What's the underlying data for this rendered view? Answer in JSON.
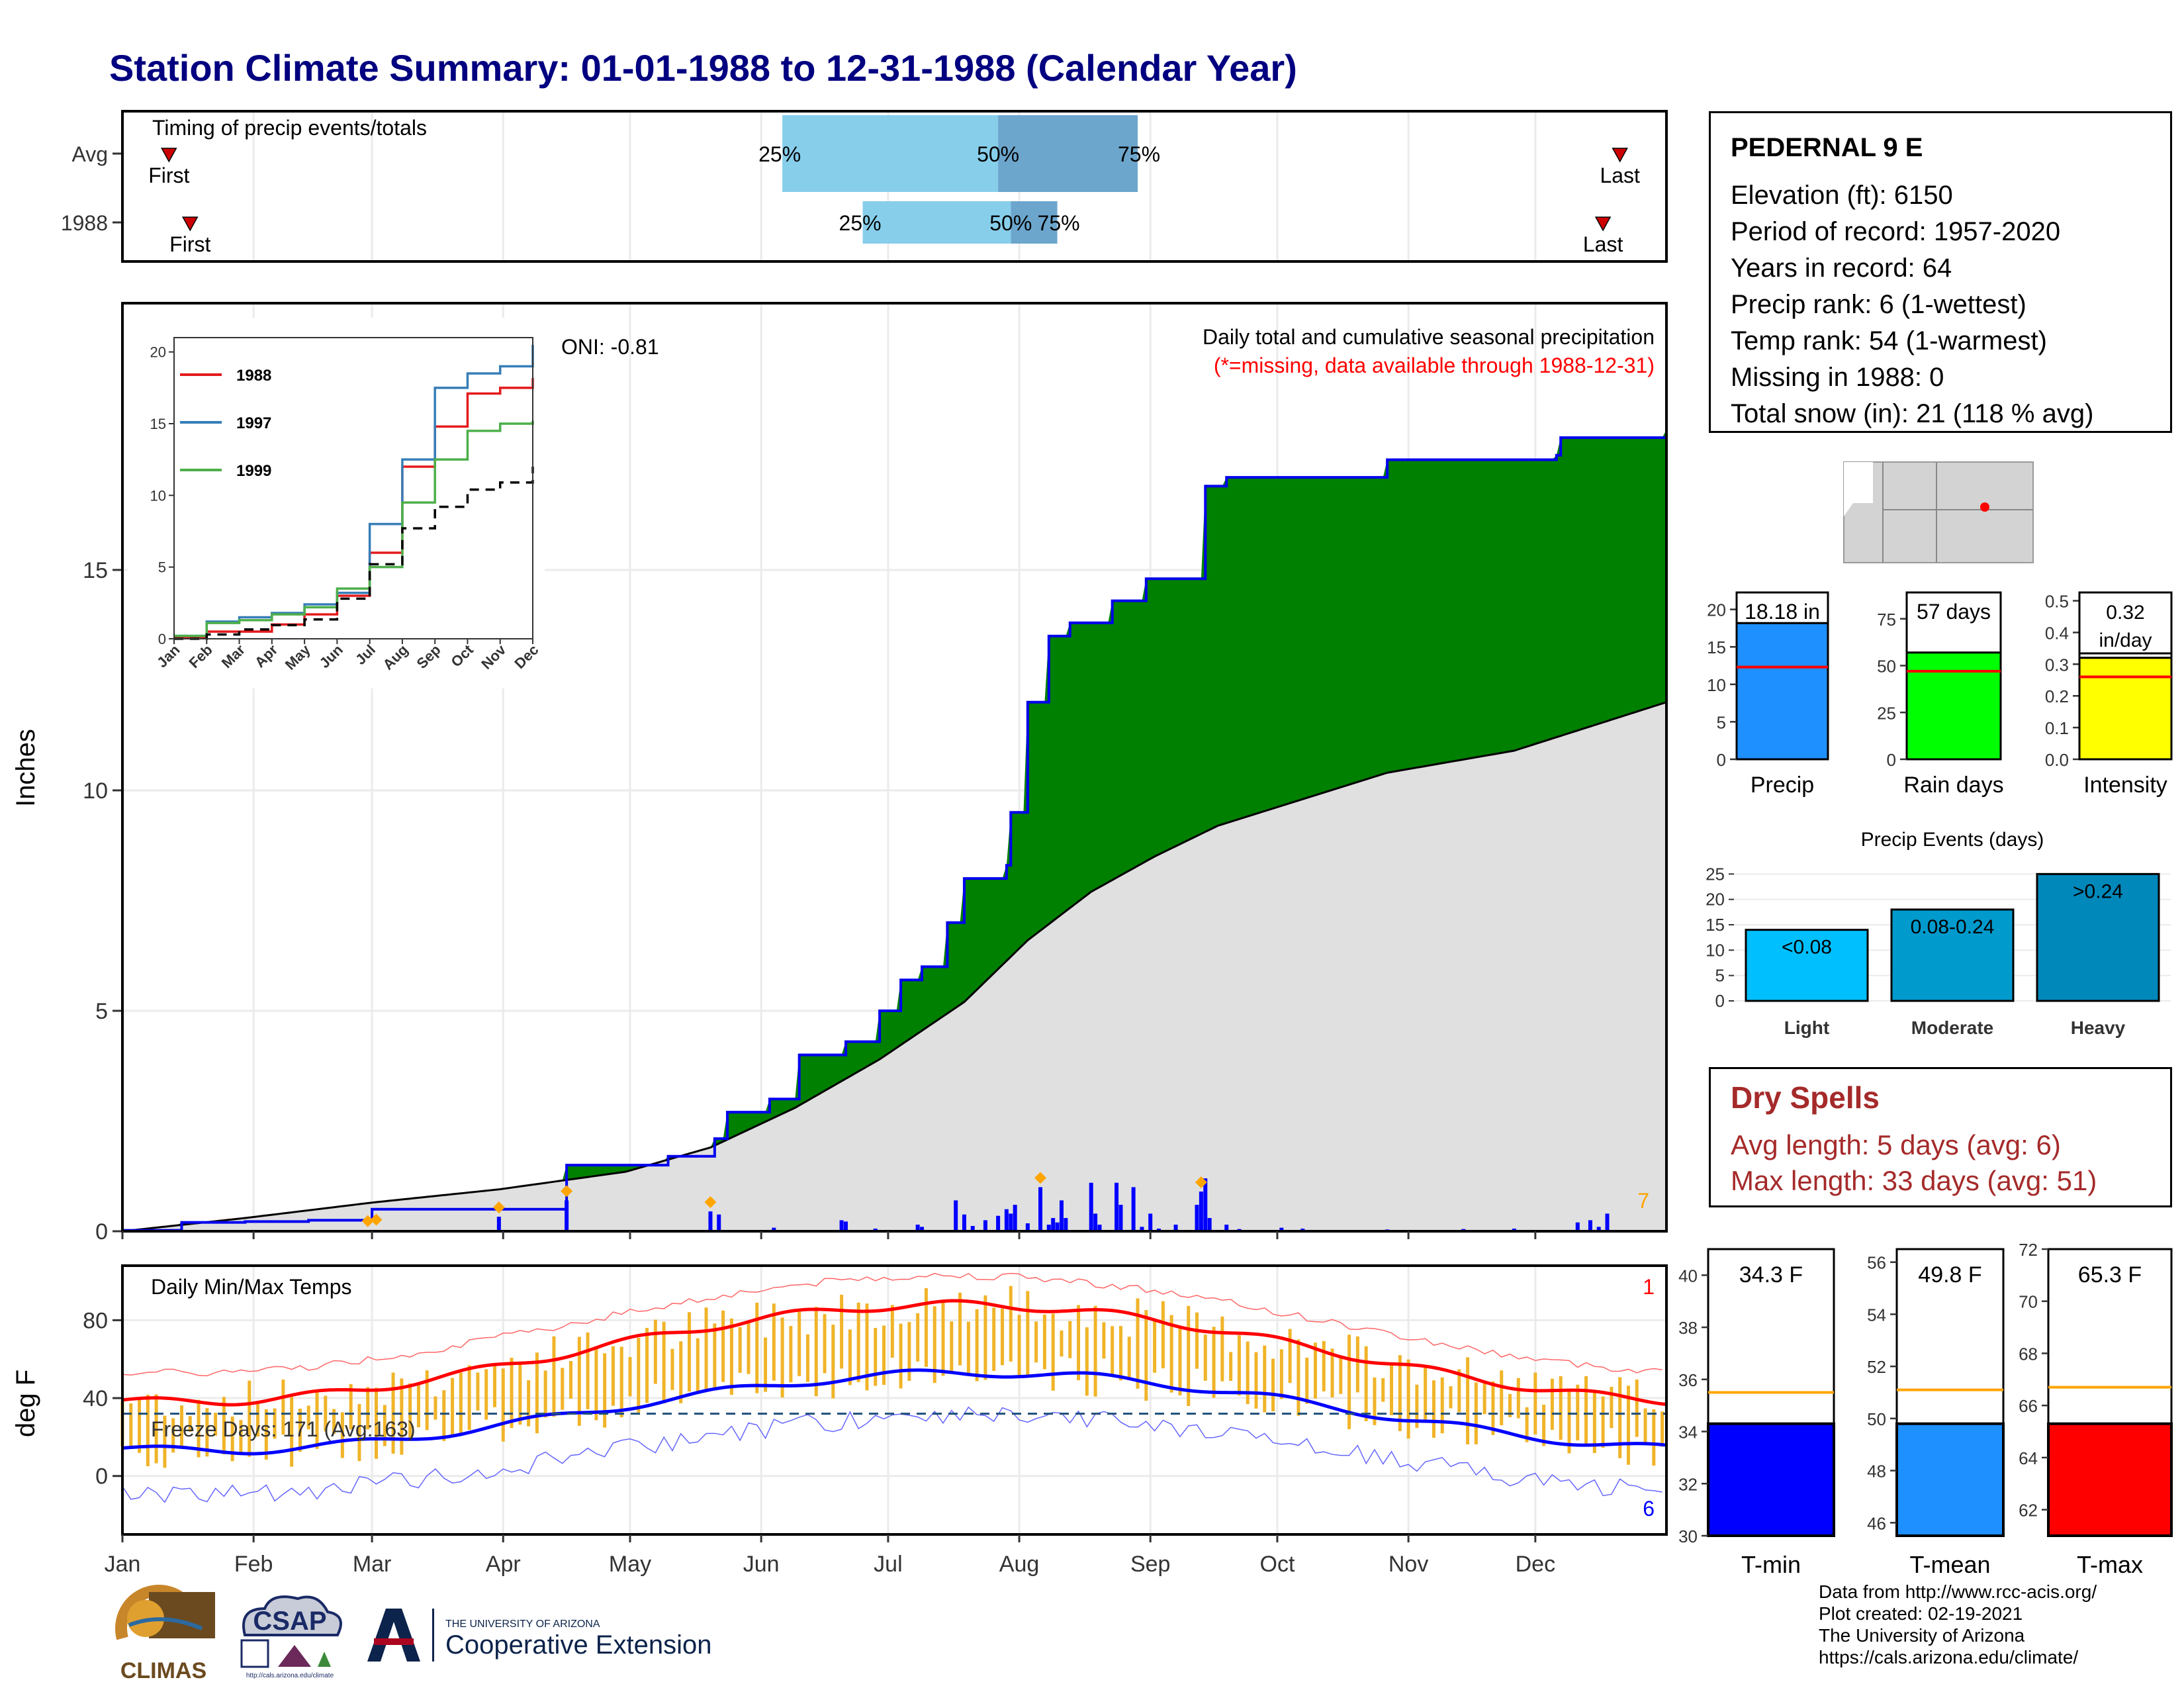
{
  "title": "Station Climate Summary: 01-01-1988 to 12-31-1988 (Calendar Year)",
  "station": {
    "name": "PEDERNAL 9 E",
    "lines": [
      "Elevation (ft): 6150",
      "Period of record: 1957-2020",
      "Years in record: 64",
      "Precip rank: 6 (1-wettest)",
      "Temp rank: 54 (1-warmest)",
      "Missing in 1988: 0",
      "Total snow (in): 21 (118 % avg)"
    ]
  },
  "dry_spells": {
    "title": "Dry Spells",
    "avg_length": "Avg length: 5 days (avg: 6)",
    "max_length": "Max length: 33 days (avg: 51)"
  },
  "footer": {
    "line1": "Data from http://www.rcc-acis.org/",
    "line2": "Plot created: 02-19-2021",
    "line3": "The University of Arizona",
    "line4": "https://cals.arizona.edu/climate/"
  },
  "logos": {
    "climas": "CLIMAS",
    "csap": "CSAP",
    "csap_url": "http://cals.arizona.edu/climate",
    "ua_small": "THE UNIVERSITY OF ARIZONA",
    "ua_big": "Cooperative Extension"
  },
  "colors": {
    "title": "#000080",
    "green_fill": "#008000",
    "brown_fill": "#7a4f10",
    "avg_fill": "#e0e0e0",
    "precip_bar": "#0000ff",
    "temp_bar": "#f0b429",
    "max_line": "#ff0000",
    "min_line": "#0000ff",
    "dry_spell": "#a52a2a"
  },
  "chart_data": [
    {
      "id": "timing",
      "type": "bar",
      "title": "Timing of precip events/totals",
      "rows": [
        {
          "label": "Avg",
          "first": "First",
          "last": "Last",
          "p25_label": "25%",
          "p50_label": "50%",
          "p75_label": "75%",
          "first_day": 12,
          "p25_day": 157,
          "p50_day": 208,
          "p75_day": 241,
          "last_day": 355
        },
        {
          "label": "1988",
          "first": "First",
          "last": "Last",
          "p25_label": "25%",
          "p50_label": "50%",
          "p75_label": "75%",
          "first_day": 17,
          "p25_day": 176,
          "p50_day": 211,
          "p75_day": 222,
          "last_day": 351
        }
      ]
    },
    {
      "id": "precip",
      "type": "area",
      "title": "Daily total and cumulative seasonal precipitation",
      "subtitle": "(*=missing, data available through 1988-12-31)",
      "oni": "ONI: -0.81",
      "ylabel": "Inches",
      "ylim": [
        0,
        20
      ],
      "yticks": [
        0,
        5,
        10,
        15
      ],
      "corner_count": "7",
      "cumulative_1988": [
        [
          1,
          0.02
        ],
        [
          15,
          0.2
        ],
        [
          30,
          0.22
        ],
        [
          45,
          0.25
        ],
        [
          60,
          0.5
        ],
        [
          90,
          0.5
        ],
        [
          106,
          0.6
        ],
        [
          106,
          1.5
        ],
        [
          130,
          1.7
        ],
        [
          140,
          1.7
        ],
        [
          141,
          2.1
        ],
        [
          144,
          2.7
        ],
        [
          153,
          2.7
        ],
        [
          154,
          3.0
        ],
        [
          160,
          3.0
        ],
        [
          161,
          4.0
        ],
        [
          172,
          4.3
        ],
        [
          180,
          5.0
        ],
        [
          185,
          5.7
        ],
        [
          190,
          6.0
        ],
        [
          196,
          7.0
        ],
        [
          200,
          8.0
        ],
        [
          210,
          8.3
        ],
        [
          211,
          9.5
        ],
        [
          215,
          12.0
        ],
        [
          220,
          13.5
        ],
        [
          225,
          13.8
        ],
        [
          235,
          14.3
        ],
        [
          243,
          14.8
        ],
        [
          256,
          14.8
        ],
        [
          257,
          16.9
        ],
        [
          262,
          17.1
        ],
        [
          290,
          17.1
        ],
        [
          300,
          17.5
        ],
        [
          340,
          17.6
        ],
        [
          341,
          18.0
        ],
        [
          366,
          18.18
        ]
      ],
      "cumulative_avg": [
        [
          1,
          0.0
        ],
        [
          30,
          0.3
        ],
        [
          60,
          0.65
        ],
        [
          90,
          0.95
        ],
        [
          120,
          1.35
        ],
        [
          140,
          1.9
        ],
        [
          160,
          2.8
        ],
        [
          180,
          3.9
        ],
        [
          200,
          5.2
        ],
        [
          215,
          6.6
        ],
        [
          230,
          7.7
        ],
        [
          245,
          8.5
        ],
        [
          260,
          9.2
        ],
        [
          280,
          9.8
        ],
        [
          300,
          10.4
        ],
        [
          330,
          10.9
        ],
        [
          366,
          12.0
        ]
      ],
      "daily": [
        [
          59,
          0.02
        ],
        [
          60,
          0.02
        ],
        [
          90,
          0.33
        ],
        [
          106,
          0.7
        ],
        [
          140,
          0.45
        ],
        [
          142,
          0.38
        ],
        [
          155,
          0.08
        ],
        [
          171,
          0.25
        ],
        [
          172,
          0.22
        ],
        [
          179,
          0.06
        ],
        [
          189,
          0.15
        ],
        [
          190,
          0.1
        ],
        [
          198,
          0.7
        ],
        [
          200,
          0.38
        ],
        [
          202,
          0.12
        ],
        [
          205,
          0.25
        ],
        [
          208,
          0.35
        ],
        [
          210,
          0.5
        ],
        [
          211,
          0.4
        ],
        [
          212,
          0.6
        ],
        [
          215,
          0.18
        ],
        [
          218,
          1.0
        ],
        [
          220,
          0.15
        ],
        [
          221,
          0.3
        ],
        [
          222,
          0.2
        ],
        [
          223,
          0.7
        ],
        [
          224,
          0.3
        ],
        [
          230,
          1.1
        ],
        [
          231,
          0.4
        ],
        [
          232,
          0.15
        ],
        [
          236,
          1.1
        ],
        [
          237,
          0.6
        ],
        [
          240,
          1.0
        ],
        [
          242,
          0.1
        ],
        [
          244,
          0.4
        ],
        [
          246,
          0.06
        ],
        [
          250,
          0.15
        ],
        [
          255,
          0.6
        ],
        [
          256,
          0.9
        ],
        [
          257,
          1.2
        ],
        [
          258,
          0.3
        ],
        [
          262,
          0.15
        ],
        [
          265,
          0.05
        ],
        [
          275,
          0.08
        ],
        [
          280,
          0.06
        ],
        [
          300,
          0.04
        ],
        [
          318,
          0.05
        ],
        [
          330,
          0.06
        ],
        [
          345,
          0.2
        ],
        [
          348,
          0.25
        ],
        [
          350,
          0.1
        ],
        [
          352,
          0.4
        ]
      ],
      "snow_markers": [
        59,
        61,
        90,
        106,
        140,
        218,
        256
      ],
      "inset": {
        "type": "line",
        "xticks": [
          "Jan",
          "Feb",
          "Mar",
          "Apr",
          "May",
          "Jun",
          "Jul",
          "Aug",
          "Sep",
          "Oct",
          "Nov",
          "Dec"
        ],
        "yticks": [
          0,
          5,
          10,
          15,
          20
        ],
        "series": [
          {
            "name": "1988",
            "color": "#e41a1c",
            "values": [
              0.05,
              0.5,
              0.5,
              1.0,
              1.7,
              3.0,
              6.0,
              12.0,
              14.8,
              17.1,
              17.5,
              18.18
            ]
          },
          {
            "name": "1997",
            "color": "#377eb8",
            "values": [
              0.2,
              1.2,
              1.5,
              1.8,
              2.4,
              3.2,
              8.0,
              12.5,
              17.5,
              18.5,
              19.0,
              20.5
            ]
          },
          {
            "name": "1999",
            "color": "#4daf4a",
            "values": [
              0.2,
              1.1,
              1.3,
              1.7,
              2.2,
              3.5,
              5.0,
              9.5,
              12.5,
              14.5,
              15.0,
              15.2
            ]
          },
          {
            "name": "",
            "color": "#000000",
            "values": [
              0.0,
              0.3,
              0.65,
              0.95,
              1.35,
              2.8,
              5.2,
              7.7,
              9.2,
              10.4,
              10.9,
              12.0
            ]
          }
        ]
      }
    },
    {
      "id": "temps",
      "type": "line",
      "title": "Daily Min/Max Temps",
      "freeze_text": "Freeze Days: 171 (Avg:163)",
      "ylabel": "deg F",
      "ylim": [
        -30,
        108
      ],
      "yticks": [
        0,
        40,
        80
      ],
      "freeze_line": 32,
      "corner_top": "1",
      "corner_bottom": "6",
      "months": [
        "Jan",
        "Feb",
        "Mar",
        "Apr",
        "May",
        "Jun",
        "Jul",
        "Aug",
        "Sep",
        "Oct",
        "Nov",
        "Dec"
      ]
    },
    {
      "id": "summary_bars",
      "type": "bar",
      "panels": [
        {
          "category": "Precip",
          "value": 18.18,
          "label": "18.18 in",
          "avg": 12.3,
          "color": "#1e90ff",
          "ylim": [
            0,
            22
          ],
          "yticks": [
            0,
            5,
            10,
            15,
            20
          ]
        },
        {
          "category": "Rain days",
          "value": 57,
          "label": "57 days",
          "avg": 47,
          "color": "#00ff00",
          "ylim": [
            0,
            88
          ],
          "yticks": [
            0,
            25,
            50,
            75
          ]
        },
        {
          "category": "Intensity",
          "value": 0.32,
          "label": "0.32 in/day",
          "avg": 0.26,
          "color": "#ffff00",
          "ylim": [
            0,
            0.52
          ],
          "yticks": [
            0.0,
            0.1,
            0.2,
            0.3,
            0.4,
            0.5
          ]
        }
      ]
    },
    {
      "id": "precip_events",
      "type": "bar",
      "title": "Precip Events (days)",
      "categories": [
        "Light",
        "Moderate",
        "Heavy"
      ],
      "values": [
        14,
        18,
        25
      ],
      "labels": [
        "<0.08",
        "0.08-0.24",
        ">0.24"
      ],
      "colors": [
        "#00bfff",
        "#009acd",
        "#0088bb"
      ],
      "ylim": [
        0,
        27
      ],
      "yticks": [
        0,
        5,
        10,
        15,
        20,
        25
      ]
    },
    {
      "id": "temp_bars",
      "type": "bar",
      "panels": [
        {
          "category": "T-min",
          "value": 34.3,
          "label": "34.3 F",
          "avg": 35.5,
          "color": "#0000ff",
          "ylim": [
            30,
            41
          ],
          "yticks": [
            30,
            32,
            34,
            36,
            38,
            40
          ]
        },
        {
          "category": "T-mean",
          "value": 49.8,
          "label": "49.8 F",
          "avg": 51.1,
          "color": "#1e90ff",
          "ylim": [
            45.5,
            56.5
          ],
          "yticks": [
            46,
            48,
            50,
            52,
            54,
            56
          ]
        },
        {
          "category": "T-max",
          "value": 65.3,
          "label": "65.3 F",
          "avg": 66.7,
          "color": "#ff0000",
          "ylim": [
            61,
            72
          ],
          "yticks": [
            62,
            64,
            66,
            68,
            70,
            72
          ]
        }
      ]
    }
  ]
}
